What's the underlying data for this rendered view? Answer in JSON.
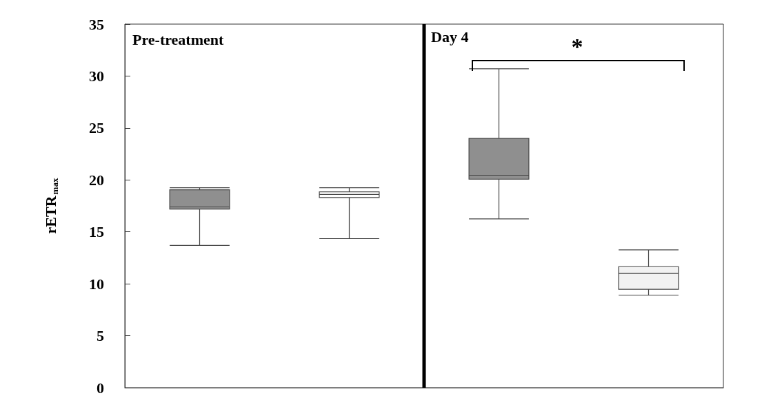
{
  "chart_data": {
    "type": "box",
    "ylabel": "rETR$_{max}$",
    "annotations": [
      "Pre-treatment",
      "Day 4",
      "*"
    ],
    "categories": [
      null,
      null,
      null,
      null
    ],
    "colors": [
      "#8f8f8f",
      "#ffffff",
      "#8f8f8f",
      "#f2f2f2"
    ],
    "boxes": [
      {
        "low": 13.7,
        "q1": 17.2,
        "median": 17.4,
        "q3": 19.05,
        "high": 19.25
      },
      {
        "low": 14.35,
        "q1": 18.3,
        "median": 18.6,
        "q3": 18.85,
        "high": 19.25
      },
      {
        "low": 16.25,
        "q1": 20.07,
        "median": 20.45,
        "q3": 24.0,
        "high": 30.7
      },
      {
        "low": 8.9,
        "q1": 9.47,
        "median": 11.0,
        "q3": 11.65,
        "high": 13.27
      }
    ],
    "ylim": [
      0,
      35
    ],
    "yticks": [
      0,
      5,
      10,
      15,
      20,
      25,
      30,
      35
    ],
    "grid": false
  }
}
